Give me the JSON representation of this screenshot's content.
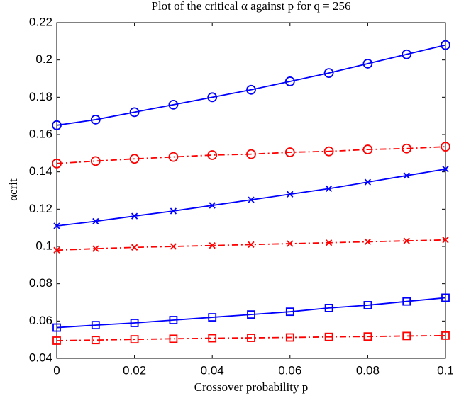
{
  "chart_data": {
    "type": "line",
    "title": "Plot of the critical α against p for q = 256",
    "x_label": "Crossover probability p",
    "y_label": "αcrit",
    "x": [
      0,
      0.01,
      0.02,
      0.03,
      0.04,
      0.05,
      0.06,
      0.07,
      0.08,
      0.09,
      0.1
    ],
    "series": [
      {
        "color": "#0000ff",
        "line": "solid",
        "marker": "circle",
        "values": [
          0.165,
          0.168,
          0.172,
          0.176,
          0.18,
          0.184,
          0.1885,
          0.193,
          0.198,
          0.203,
          0.208
        ]
      },
      {
        "color": "#ff0000",
        "line": "dashdot",
        "marker": "circle",
        "values": [
          0.1445,
          0.1458,
          0.147,
          0.148,
          0.149,
          0.1495,
          0.1505,
          0.151,
          0.152,
          0.1525,
          0.1535
        ]
      },
      {
        "color": "#0000ff",
        "line": "solid",
        "marker": "x",
        "values": [
          0.111,
          0.1135,
          0.1163,
          0.119,
          0.122,
          0.125,
          0.128,
          0.131,
          0.1345,
          0.138,
          0.1415
        ]
      },
      {
        "color": "#ff0000",
        "line": "dashdot",
        "marker": "x",
        "values": [
          0.098,
          0.0988,
          0.0995,
          0.1,
          0.1005,
          0.101,
          0.1015,
          0.102,
          0.1025,
          0.103,
          0.1035
        ]
      },
      {
        "color": "#0000ff",
        "line": "solid",
        "marker": "square",
        "values": [
          0.0565,
          0.0578,
          0.059,
          0.0605,
          0.062,
          0.0635,
          0.065,
          0.067,
          0.0685,
          0.0705,
          0.0725
        ]
      },
      {
        "color": "#ff0000",
        "line": "dashdot",
        "marker": "square",
        "values": [
          0.0495,
          0.0498,
          0.0502,
          0.0505,
          0.0508,
          0.051,
          0.0512,
          0.0515,
          0.0517,
          0.052,
          0.0522
        ]
      }
    ],
    "xlim": [
      0,
      0.1
    ],
    "xticks": [
      0,
      0.02,
      0.04,
      0.06,
      0.08,
      0.1
    ],
    "ylim": [
      0.04,
      0.22
    ],
    "yticks": [
      0.04,
      0.06,
      0.08,
      0.1,
      0.12,
      0.14,
      0.16,
      0.18,
      0.2,
      0.22
    ],
    "grid": false
  }
}
